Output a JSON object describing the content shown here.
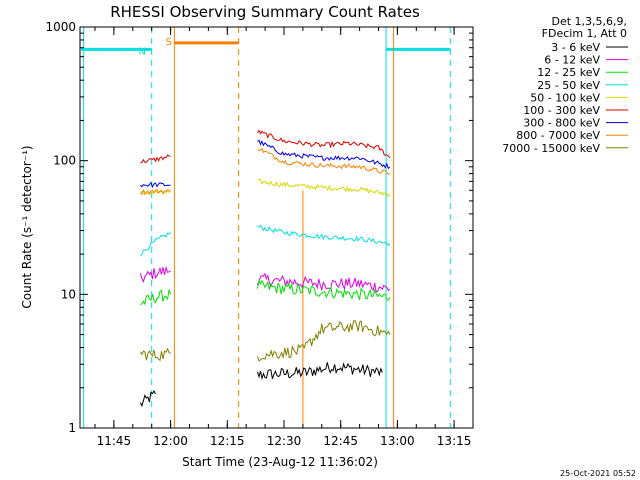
{
  "chart_data": {
    "type": "line",
    "title": "RHESSI Observing Summary Count Rates",
    "xlabel": "Start Time (23-Aug-12 11:36:02)",
    "ylabel": "Count Rate (s⁻¹ detector⁻¹)",
    "yscale": "log",
    "ylim": [
      1,
      1000
    ],
    "xlim": [
      "11:36:02",
      "13:20:00"
    ],
    "x_ticks": [
      "11:45",
      "12:00",
      "12:15",
      "12:30",
      "12:45",
      "13:00",
      "13:15"
    ],
    "y_ticks": [
      {
        "value": 1,
        "label": "1"
      },
      {
        "value": 10,
        "label": "10"
      },
      {
        "value": 100,
        "label": "100"
      },
      {
        "value": 1000,
        "label": "1000"
      }
    ],
    "legend_header": [
      "Det 1,3,5,6,9,",
      "FDecim 1, Att 0"
    ],
    "legend_placement": "right",
    "series": [
      {
        "name": "3 - 6 keV",
        "color": "#000000",
        "segments": [
          {
            "x": [
              "11:52",
              "11:56"
            ],
            "y": [
              1.5,
              1.8
            ]
          },
          {
            "x": [
              "12:23",
              "12:36",
              "12:43",
              "12:56"
            ],
            "y": [
              2.5,
              2.6,
              2.9,
              2.6
            ]
          }
        ]
      },
      {
        "name": "6 - 12 keV",
        "color": "#e000e0",
        "segments": [
          {
            "x": [
              "11:52",
              "11:56",
              "12:00"
            ],
            "y": [
              13,
              14.5,
              15
            ]
          },
          {
            "x": [
              "12:23",
              "12:30",
              "12:40",
              "12:50",
              "12:58"
            ],
            "y": [
              13,
              12.5,
              12,
              12,
              11
            ]
          }
        ]
      },
      {
        "name": "12 - 25 keV",
        "color": "#00e000",
        "segments": [
          {
            "x": [
              "11:52",
              "11:56",
              "12:00"
            ],
            "y": [
              8.5,
              9.5,
              10
            ]
          },
          {
            "x": [
              "12:23",
              "12:30",
              "12:40",
              "12:50",
              "12:58"
            ],
            "y": [
              11.5,
              11,
              10.5,
              10,
              9.5
            ]
          }
        ]
      },
      {
        "name": "25 - 50 keV",
        "color": "#00e0e0",
        "segments": [
          {
            "x": [
              "11:52",
              "11:56",
              "12:00"
            ],
            "y": [
              20,
              25,
              29
            ]
          },
          {
            "x": [
              "12:23",
              "12:30",
              "12:40",
              "12:50",
              "12:58"
            ],
            "y": [
              32,
              29,
              27,
              26,
              24
            ]
          }
        ]
      },
      {
        "name": "50 - 100 keV",
        "color": "#d8d800",
        "segments": [
          {
            "x": [
              "11:52",
              "11:56",
              "12:00"
            ],
            "y": [
              57,
              58,
              58
            ]
          },
          {
            "x": [
              "12:23",
              "12:30",
              "12:40",
              "12:50",
              "12:58"
            ],
            "y": [
              70,
              66,
              63,
              61,
              56
            ]
          }
        ]
      },
      {
        "name": "100 - 300 keV",
        "color": "#e00000",
        "segments": [
          {
            "x": [
              "11:52",
              "11:56",
              "12:00"
            ],
            "y": [
              98,
              102,
              108
            ]
          },
          {
            "x": [
              "12:23",
              "12:30",
              "12:40",
              "12:47",
              "12:55",
              "12:58"
            ],
            "y": [
              165,
              140,
              130,
              135,
              125,
              105
            ]
          }
        ]
      },
      {
        "name": "300 - 800 keV",
        "color": "#0000e0",
        "segments": [
          {
            "x": [
              "11:52",
              "11:56",
              "12:00"
            ],
            "y": [
              66,
              66,
              66
            ]
          },
          {
            "x": [
              "12:23",
              "12:30",
              "12:40",
              "12:50",
              "12:58"
            ],
            "y": [
              140,
              112,
              105,
              105,
              90
            ]
          }
        ]
      },
      {
        "name": "800 - 7000 keV",
        "color": "#ff8000",
        "segments": [
          {
            "x": [
              "11:52",
              "11:56",
              "12:00"
            ],
            "y": [
              58,
              59,
              59
            ]
          },
          {
            "x": [
              "12:23",
              "12:30",
              "12:40",
              "12:50",
              "12:58"
            ],
            "y": [
              125,
              98,
              92,
              90,
              80
            ]
          }
        ]
      },
      {
        "name": "7000 - 15000 keV",
        "color": "#808000",
        "segments": [
          {
            "x": [
              "11:52",
              "11:56",
              "12:00"
            ],
            "y": [
              3.6,
              3.5,
              3.6
            ]
          },
          {
            "x": [
              "12:23",
              "12:35",
              "12:40",
              "12:50",
              "12:58"
            ],
            "y": [
              3.5,
              3.8,
              5.5,
              5.8,
              5.0
            ]
          }
        ]
      }
    ],
    "flags": {
      "night": {
        "label": "N",
        "color": "#00e0e0",
        "bars": [
          {
            "x": [
              "11:36:02",
              "11:55"
            ]
          },
          {
            "x": [
              "12:57",
              "13:14"
            ]
          }
        ],
        "level": 680,
        "solid_lines": [
          "11:37",
          "12:57"
        ],
        "dashed_lines": [
          "11:55",
          "13:14"
        ]
      },
      "saa": {
        "label": "S",
        "color": "#ff8000",
        "bars": [
          {
            "x": [
              "12:01",
              "12:18"
            ]
          }
        ],
        "level": 760,
        "solid_lines": [
          "12:01",
          "12:59"
        ],
        "dashed_lines": [
          "12:18"
        ],
        "interior_lines": [
          "12:35"
        ]
      }
    }
  },
  "footer": {
    "timestamp": "25-Oct-2021 05:52"
  }
}
